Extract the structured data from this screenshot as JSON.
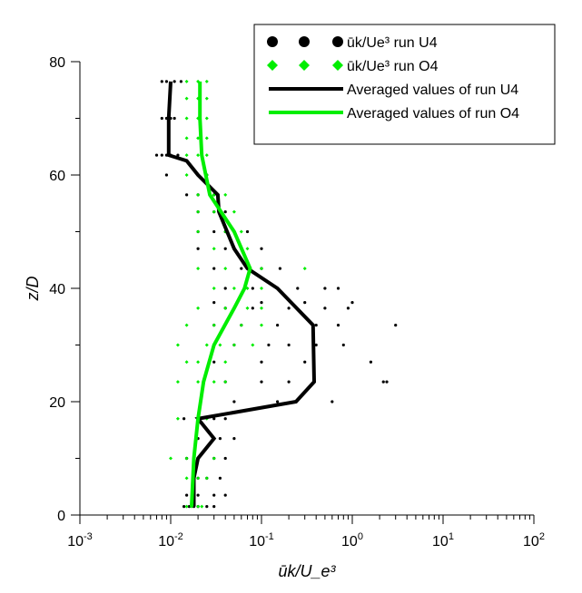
{
  "colors": {
    "u4": "#000000",
    "o4": "#00ee00"
  },
  "chart_data": {
    "type": "scatter",
    "title": "",
    "xlabel": "ūk/U_e³",
    "ylabel": "z/D",
    "xscale": "log",
    "xlim": [
      0.001,
      100
    ],
    "ylim": [
      0,
      80
    ],
    "xticks": [
      "10-3",
      "10-2",
      "10-1",
      "100",
      "101",
      "102"
    ],
    "yticks": [
      "0",
      "20",
      "40",
      "60",
      "80"
    ],
    "legend_position": "top-right",
    "legend": [
      {
        "key": "u4_points",
        "label": "ūk/Ue³ run U4",
        "marker": "circle"
      },
      {
        "key": "o4_points",
        "label": "ūk/Ue³ run O4",
        "marker": "diamond"
      },
      {
        "key": "u4_avg",
        "label": "Averaged values of run U4",
        "marker": "line"
      },
      {
        "key": "o4_avg",
        "label": "Averaged values of run O4",
        "marker": "line"
      }
    ],
    "series": [
      {
        "name": "Averaged values of run U4",
        "kind": "line",
        "color": "#000000",
        "points": [
          [
            0.018,
            1.5
          ],
          [
            0.018,
            6.5
          ],
          [
            0.02,
            10
          ],
          [
            0.03,
            13.5
          ],
          [
            0.02,
            17
          ],
          [
            0.24,
            20
          ],
          [
            0.38,
            23.5
          ],
          [
            0.37,
            33.5
          ],
          [
            0.15,
            40
          ],
          [
            0.07,
            43.5
          ],
          [
            0.05,
            47
          ],
          [
            0.034,
            53.5
          ],
          [
            0.033,
            56.5
          ],
          [
            0.02,
            60
          ],
          [
            0.015,
            62.5
          ],
          [
            0.0095,
            63.5
          ],
          [
            0.0095,
            70
          ],
          [
            0.01,
            76.5
          ]
        ]
      },
      {
        "name": "Averaged values of run O4",
        "kind": "line",
        "color": "#00ee00",
        "points": [
          [
            0.017,
            1.5
          ],
          [
            0.018,
            10
          ],
          [
            0.02,
            17
          ],
          [
            0.023,
            23.5
          ],
          [
            0.03,
            30
          ],
          [
            0.05,
            36.5
          ],
          [
            0.065,
            40
          ],
          [
            0.075,
            43.5
          ],
          [
            0.05,
            50
          ],
          [
            0.027,
            56.5
          ],
          [
            0.022,
            63.5
          ],
          [
            0.021,
            70
          ],
          [
            0.021,
            76.5
          ]
        ]
      },
      {
        "name": "ūk/Ue³ run U4",
        "kind": "scatter",
        "marker": "circle",
        "color": "#000000",
        "points": [
          [
            0.014,
            1.5
          ],
          [
            0.016,
            1.5
          ],
          [
            0.018,
            1.5
          ],
          [
            0.02,
            1.5
          ],
          [
            0.025,
            1.5
          ],
          [
            0.03,
            1.5
          ],
          [
            0.015,
            3.5
          ],
          [
            0.02,
            3.5
          ],
          [
            0.03,
            3.5
          ],
          [
            0.04,
            3.5
          ],
          [
            0.02,
            6.5
          ],
          [
            0.025,
            6.5
          ],
          [
            0.035,
            6.5
          ],
          [
            0.015,
            10
          ],
          [
            0.02,
            10
          ],
          [
            0.03,
            10
          ],
          [
            0.04,
            10
          ],
          [
            0.02,
            13.5
          ],
          [
            0.035,
            13.5
          ],
          [
            0.05,
            13.5
          ],
          [
            0.014,
            17
          ],
          [
            0.02,
            17
          ],
          [
            0.03,
            17
          ],
          [
            0.04,
            17
          ],
          [
            0.05,
            20
          ],
          [
            0.15,
            20
          ],
          [
            0.6,
            20
          ],
          [
            0.04,
            23.5
          ],
          [
            0.1,
            23.5
          ],
          [
            0.2,
            23.5
          ],
          [
            2.2,
            23.5
          ],
          [
            2.4,
            23.5
          ],
          [
            0.03,
            27
          ],
          [
            0.1,
            27
          ],
          [
            0.3,
            27
          ],
          [
            1.6,
            27
          ],
          [
            0.05,
            30
          ],
          [
            0.12,
            30
          ],
          [
            0.2,
            30
          ],
          [
            0.4,
            30
          ],
          [
            0.8,
            30
          ],
          [
            0.03,
            33.5
          ],
          [
            0.06,
            33.5
          ],
          [
            0.15,
            33.5
          ],
          [
            0.4,
            33.5
          ],
          [
            0.7,
            33.5
          ],
          [
            3.0,
            33.5
          ],
          [
            0.04,
            36.5
          ],
          [
            0.08,
            36.5
          ],
          [
            0.2,
            36.5
          ],
          [
            0.5,
            36.5
          ],
          [
            0.9,
            36.5
          ],
          [
            0.03,
            37.5
          ],
          [
            0.1,
            37.5
          ],
          [
            0.3,
            37.5
          ],
          [
            1.0,
            37.5
          ],
          [
            0.04,
            40
          ],
          [
            0.08,
            40
          ],
          [
            0.15,
            40
          ],
          [
            0.25,
            40
          ],
          [
            0.5,
            40
          ],
          [
            0.7,
            40
          ],
          [
            0.03,
            43.5
          ],
          [
            0.06,
            43.5
          ],
          [
            0.1,
            43.5
          ],
          [
            0.16,
            43.5
          ],
          [
            0.02,
            47
          ],
          [
            0.04,
            47
          ],
          [
            0.06,
            47
          ],
          [
            0.1,
            47
          ],
          [
            0.02,
            50
          ],
          [
            0.03,
            50
          ],
          [
            0.04,
            50
          ],
          [
            0.07,
            50
          ],
          [
            0.02,
            53.5
          ],
          [
            0.03,
            53.5
          ],
          [
            0.04,
            53.5
          ],
          [
            0.015,
            56.5
          ],
          [
            0.02,
            56.5
          ],
          [
            0.03,
            56.5
          ],
          [
            0.009,
            60
          ],
          [
            0.02,
            60
          ],
          [
            0.025,
            60
          ],
          [
            0.007,
            63.5
          ],
          [
            0.008,
            63.5
          ],
          [
            0.009,
            63.5
          ],
          [
            0.01,
            63.5
          ],
          [
            0.012,
            63.5
          ],
          [
            0.008,
            70
          ],
          [
            0.009,
            70
          ],
          [
            0.01,
            70
          ],
          [
            0.011,
            70
          ],
          [
            0.008,
            76.5
          ],
          [
            0.009,
            76.5
          ],
          [
            0.011,
            76.5
          ],
          [
            0.013,
            76.5
          ]
        ]
      },
      {
        "name": "ūk/Ue³ run O4",
        "kind": "scatter",
        "marker": "diamond",
        "color": "#00ee00",
        "points": [
          [
            0.015,
            1.5
          ],
          [
            0.017,
            1.5
          ],
          [
            0.02,
            1.5
          ],
          [
            0.022,
            1.5
          ],
          [
            0.015,
            6.5
          ],
          [
            0.02,
            6.5
          ],
          [
            0.025,
            6.5
          ],
          [
            0.01,
            10
          ],
          [
            0.015,
            10
          ],
          [
            0.02,
            10
          ],
          [
            0.03,
            10
          ],
          [
            0.012,
            17
          ],
          [
            0.02,
            17
          ],
          [
            0.025,
            17
          ],
          [
            0.012,
            23.5
          ],
          [
            0.02,
            23.5
          ],
          [
            0.03,
            23.5
          ],
          [
            0.04,
            23.5
          ],
          [
            0.015,
            27
          ],
          [
            0.02,
            27
          ],
          [
            0.04,
            27
          ],
          [
            0.012,
            30
          ],
          [
            0.025,
            30
          ],
          [
            0.035,
            30
          ],
          [
            0.05,
            30
          ],
          [
            0.08,
            30
          ],
          [
            0.015,
            33.5
          ],
          [
            0.03,
            33.5
          ],
          [
            0.06,
            33.5
          ],
          [
            0.1,
            33.5
          ],
          [
            0.02,
            36.5
          ],
          [
            0.04,
            36.5
          ],
          [
            0.07,
            36.5
          ],
          [
            0.1,
            36.5
          ],
          [
            0.03,
            40
          ],
          [
            0.05,
            40
          ],
          [
            0.07,
            40
          ],
          [
            0.1,
            40
          ],
          [
            0.02,
            43.5
          ],
          [
            0.04,
            43.5
          ],
          [
            0.07,
            43.5
          ],
          [
            0.1,
            43.5
          ],
          [
            0.3,
            43.5
          ],
          [
            0.03,
            47
          ],
          [
            0.05,
            47
          ],
          [
            0.07,
            47
          ],
          [
            0.02,
            50
          ],
          [
            0.04,
            50
          ],
          [
            0.06,
            50
          ],
          [
            0.02,
            53.5
          ],
          [
            0.03,
            53.5
          ],
          [
            0.05,
            53.5
          ],
          [
            0.02,
            56.5
          ],
          [
            0.03,
            56.5
          ],
          [
            0.04,
            56.5
          ],
          [
            0.015,
            60
          ],
          [
            0.02,
            60
          ],
          [
            0.025,
            60
          ],
          [
            0.015,
            63.5
          ],
          [
            0.02,
            63.5
          ],
          [
            0.025,
            63.5
          ],
          [
            0.015,
            66.5
          ],
          [
            0.02,
            66.5
          ],
          [
            0.025,
            66.5
          ],
          [
            0.015,
            70
          ],
          [
            0.02,
            70
          ],
          [
            0.025,
            70
          ],
          [
            0.015,
            73.5
          ],
          [
            0.02,
            73.5
          ],
          [
            0.025,
            73.5
          ],
          [
            0.015,
            76.5
          ],
          [
            0.02,
            76.5
          ],
          [
            0.025,
            76.5
          ]
        ]
      }
    ]
  }
}
